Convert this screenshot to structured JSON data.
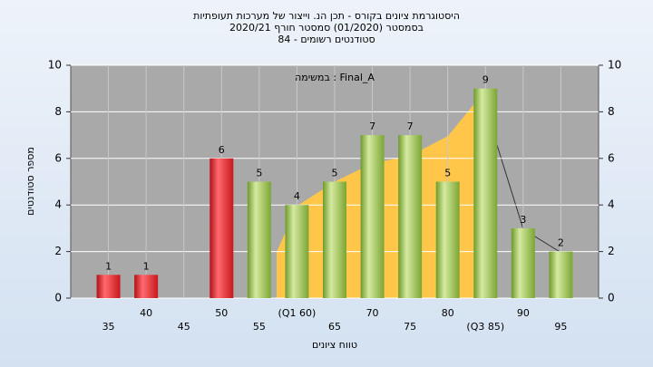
{
  "chart_data": {
    "type": "bar",
    "title": [
      "היסטוגרמת ציונים בקורס - תכן הנ. וייצור של מערכות תעופתיות",
      "בסמסטר  (01/2020)  סמסטר חורף 2020/21",
      "סטודנטים רשומים - 84"
    ],
    "annotation": "במשימה : Final_A",
    "x_label": "טווח ציונים",
    "y_label": "מספר סטודנטים",
    "categories": [
      "35",
      "40",
      "45",
      "50",
      "55",
      "(Q1 60)",
      "65",
      "70",
      "75",
      "80",
      "(Q3 85)",
      "90",
      "95"
    ],
    "values": [
      1,
      1,
      0,
      6,
      5,
      4,
      5,
      7,
      7,
      5,
      9,
      3,
      2
    ],
    "colors": [
      "#e0262b",
      "#e0262b",
      "#e0262b",
      "#e0262b",
      "#9bc04a",
      "#9bc04a",
      "#9bc04a",
      "#9bc04a",
      "#9bc04a",
      "#9bc04a",
      "#9bc04a",
      "#9bc04a",
      "#9bc04a"
    ],
    "ylim": [
      0,
      10
    ],
    "yticks": [
      0,
      2,
      4,
      6,
      8,
      10
    ],
    "grid": true
  }
}
